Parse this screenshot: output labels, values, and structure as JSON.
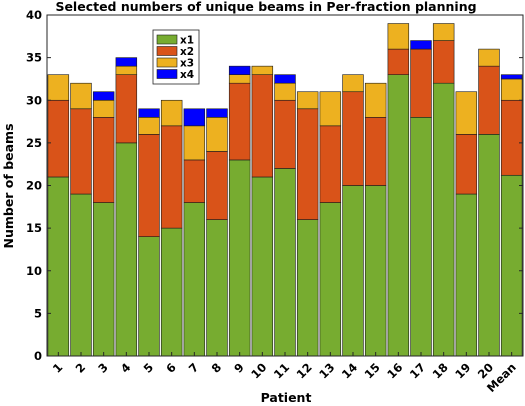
{
  "chart_data": {
    "type": "bar",
    "stacked": true,
    "title": "Selected numbers of unique beams in Per-fraction planning",
    "xlabel": "Patient",
    "ylabel": "Number of beams",
    "ylim": [
      0,
      40
    ],
    "yticks": [
      0,
      5,
      10,
      15,
      20,
      25,
      30,
      35,
      40
    ],
    "grid": false,
    "legend_position": "top-left",
    "categories": [
      "1",
      "2",
      "3",
      "4",
      "5",
      "6",
      "7",
      "8",
      "9",
      "10",
      "11",
      "12",
      "13",
      "14",
      "15",
      "16",
      "17",
      "18",
      "19",
      "20",
      "Mean"
    ],
    "series": [
      {
        "name": "x1",
        "color": "#77ac30",
        "values": [
          21,
          19,
          18,
          25,
          14,
          15,
          18,
          16,
          23,
          21,
          22,
          16,
          18,
          20,
          20,
          33,
          28,
          32,
          19,
          26,
          21.2
        ]
      },
      {
        "name": "x2",
        "color": "#d95319",
        "values": [
          9,
          10,
          10,
          8,
          12,
          12,
          5,
          8,
          9,
          12,
          8,
          13,
          9,
          11,
          8,
          3,
          8,
          5,
          7,
          8,
          8.8
        ]
      },
      {
        "name": "x3",
        "color": "#edb120",
        "values": [
          3,
          3,
          2,
          1,
          2,
          3,
          4,
          4,
          1,
          1,
          2,
          2,
          4,
          2,
          4,
          3,
          0,
          2,
          5,
          2,
          2.5
        ]
      },
      {
        "name": "x4",
        "color": "#0000ff",
        "values": [
          0,
          0,
          1,
          1,
          1,
          0,
          2,
          1,
          1,
          0,
          1,
          0,
          0,
          0,
          0,
          0,
          1,
          0,
          0,
          0,
          0.5
        ]
      }
    ]
  }
}
